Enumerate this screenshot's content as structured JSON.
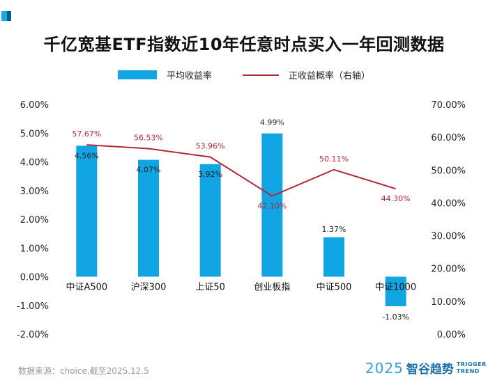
{
  "title": "千亿宽基ETF指数近10年任意时点买入一年回测数据",
  "legend": {
    "bar_label": "平均收益率",
    "line_label": "正收益概率（右轴）"
  },
  "footer": {
    "source": "数据来源：choice,截至2025.12.5"
  },
  "brand": {
    "year": "2025",
    "name": "智谷趋势",
    "sub_line1": "TRIGGER",
    "sub_line2": "TREND"
  },
  "colors": {
    "bar": "#12a5e3",
    "line": "#b0293a",
    "bar_label": "#222222",
    "line_label": "#b0293a"
  },
  "chart_data": {
    "type": "bar",
    "title": "千亿宽基ETF指数近10年任意时点买入一年回测数据",
    "categories": [
      "中证A500",
      "沪深300",
      "上证50",
      "创业板指",
      "中证500",
      "中证1000"
    ],
    "series": [
      {
        "name": "平均收益率",
        "type": "bar",
        "axis": "left",
        "values": [
          4.56,
          4.07,
          3.92,
          4.99,
          1.37,
          -1.03
        ],
        "labels": [
          "4.56%",
          "4.07%",
          "3.92%",
          "4.99%",
          "1.37%",
          "-1.03%"
        ]
      },
      {
        "name": "正收益概率（右轴）",
        "type": "line",
        "axis": "right",
        "values": [
          57.67,
          56.53,
          53.96,
          42.1,
          50.11,
          44.3
        ],
        "labels": [
          "57.67%",
          "56.53%",
          "53.96%",
          "42.10%",
          "50.11%",
          "44.30%"
        ]
      }
    ],
    "y_left": {
      "min": -2.0,
      "max": 6.0,
      "ticks": [
        6.0,
        5.0,
        4.0,
        3.0,
        2.0,
        1.0,
        0.0,
        -1.0,
        -2.0
      ],
      "tick_labels": [
        "6.00%",
        "5.00%",
        "4.00%",
        "3.00%",
        "2.00%",
        "1.00%",
        "0.00%",
        "-1.00%",
        "-2.00%"
      ]
    },
    "y_right": {
      "min": 0,
      "max": 70,
      "ticks": [
        70,
        60,
        50,
        40,
        30,
        20,
        10,
        0
      ],
      "tick_labels": [
        "70.00%",
        "60.00%",
        "50.00%",
        "40.00%",
        "30.00%",
        "20.00%",
        "10.00%",
        "0.00%"
      ]
    },
    "grid": false,
    "legend_position": "top-center"
  }
}
